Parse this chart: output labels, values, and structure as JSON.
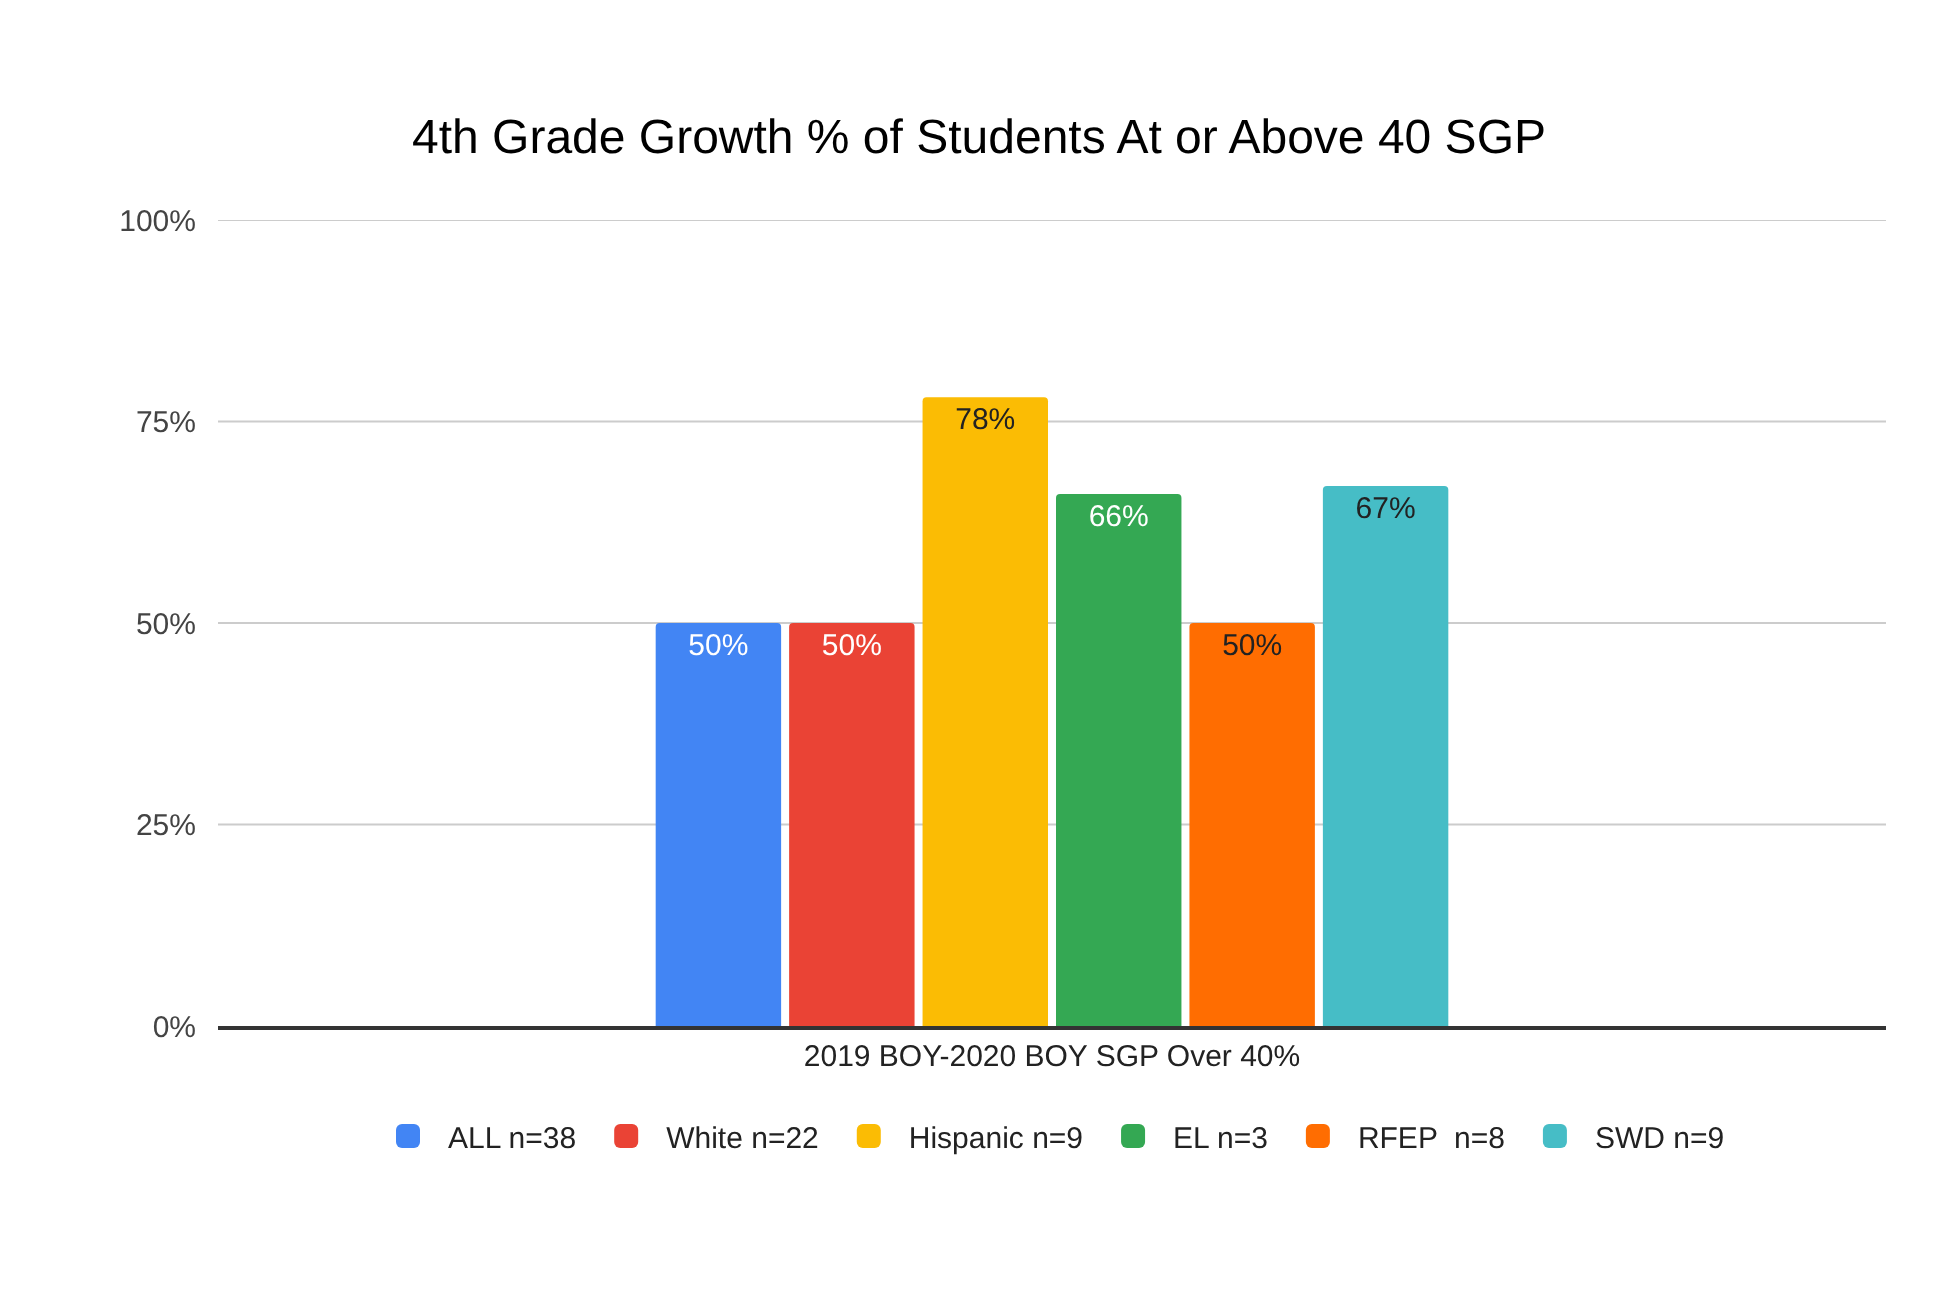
{
  "chart_data": {
    "type": "bar",
    "title": "4th Grade Growth % of Students At or Above 40 SGP",
    "categories": [
      "2019 BOY-2020 BOY SGP Over 40%"
    ],
    "series": [
      {
        "name": "ALL n=38",
        "color": "#4285f4",
        "values": [
          50
        ],
        "value_labels": [
          "50%"
        ]
      },
      {
        "name": "White n=22",
        "color": "#ea4335",
        "values": [
          50
        ],
        "value_labels": [
          "50%"
        ]
      },
      {
        "name": "Hispanic n=9",
        "color": "#fbbc04",
        "values": [
          78
        ],
        "value_labels": [
          "78%"
        ]
      },
      {
        "name": "EL n=3",
        "color": "#34a853",
        "values": [
          66
        ],
        "value_labels": [
          "66%"
        ]
      },
      {
        "name": "RFEP  n=8",
        "color": "#ff6d01",
        "values": [
          50
        ],
        "value_labels": [
          "50%"
        ]
      },
      {
        "name": "SWD n=9",
        "color": "#46bdc6",
        "values": [
          67
        ],
        "value_labels": [
          "67%"
        ]
      }
    ],
    "ylim": [
      0,
      100
    ],
    "yticks": [
      {
        "value": 0,
        "label": "0%"
      },
      {
        "value": 25,
        "label": "25%"
      },
      {
        "value": 50,
        "label": "50%"
      },
      {
        "value": 75,
        "label": "75%"
      },
      {
        "value": 100,
        "label": "100%"
      }
    ],
    "grid": "y",
    "legend": "bottom"
  }
}
